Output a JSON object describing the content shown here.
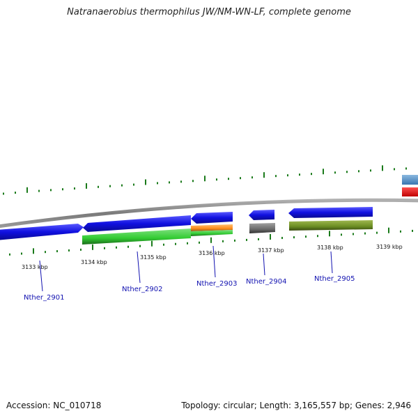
{
  "title": "Natranaerobius thermophilus JW/NM-WN-LF, complete genome",
  "footer": {
    "accession": "Accession: NC_010718",
    "summary": "Topology: circular; Length: 3,165,557 bp; Genes: 2,946"
  },
  "colors": {
    "backbone": "#888888",
    "tick": "#1a7a1a",
    "gene_label": "#1010b0",
    "cds_blue": "#1010e0",
    "green": "#33cc33",
    "orange": "#ff8c1a",
    "gray": "#707070",
    "olive": "#6b8e23",
    "steel_blue": "#4a86c0",
    "red": "#ee0000"
  },
  "kbp_labels": [
    "3133 kbp",
    "3134 kbp",
    "3135 kbp",
    "3136 kbp",
    "3137 kbp",
    "3138 kbp",
    "3139 kbp"
  ],
  "gene_labels": [
    "Nther_2901",
    "Nther_2902",
    "Nther_2903",
    "Nther_2904",
    "Nther_2905"
  ]
}
